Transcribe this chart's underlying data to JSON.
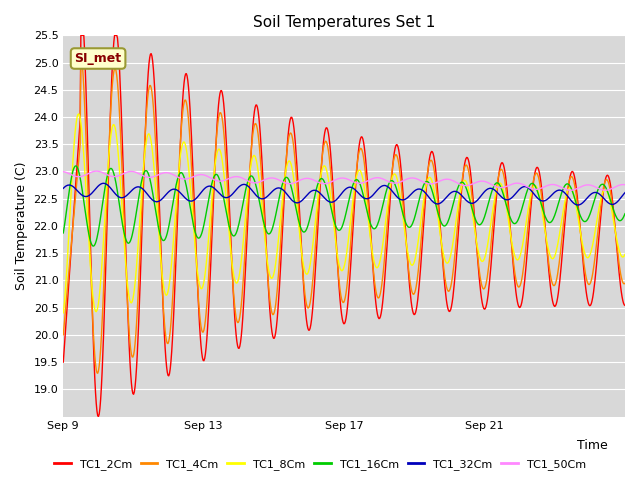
{
  "title": "Soil Temperatures Set 1",
  "xlabel": "Time",
  "ylabel": "Soil Temperature (C)",
  "ylim": [
    18.5,
    25.5
  ],
  "xlim": [
    0,
    16
  ],
  "xtick_positions": [
    0,
    4,
    8,
    12
  ],
  "xtick_labels": [
    "Sep 9",
    "Sep 13",
    "Sep 17",
    "Sep 21"
  ],
  "ytick_vals": [
    19.0,
    19.5,
    20.0,
    20.5,
    21.0,
    21.5,
    22.0,
    22.5,
    23.0,
    23.5,
    24.0,
    24.5,
    25.0,
    25.5
  ],
  "fig_bg": "#ffffff",
  "plot_bg": "#d8d8d8",
  "grid_color": "#ffffff",
  "annotation_text": "SI_met",
  "annotation_bg": "#ffffcc",
  "annotation_border": "#999933",
  "annotation_text_color": "#880000",
  "series_colors": {
    "TC1_2Cm": "#ff0000",
    "TC1_4Cm": "#ff8800",
    "TC1_8Cm": "#ffff00",
    "TC1_16Cm": "#00cc00",
    "TC1_32Cm": "#0000bb",
    "TC1_50Cm": "#ff88ff"
  },
  "series_lw": 1.0,
  "title_fontsize": 11,
  "axis_label_fontsize": 9,
  "tick_fontsize": 8,
  "legend_fontsize": 8
}
